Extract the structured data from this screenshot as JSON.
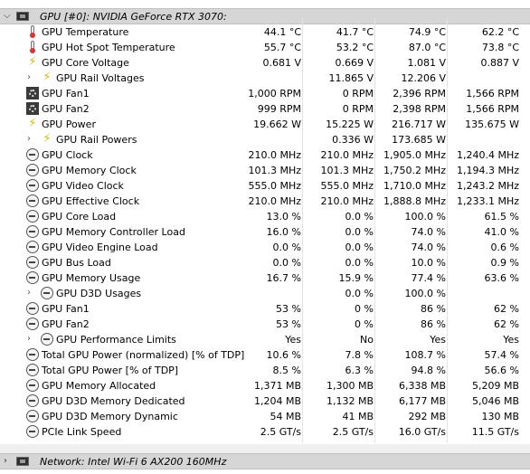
{
  "gpu_header": {
    "title": "GPU [#0]: NVIDIA GeForce RTX 3070:"
  },
  "rows": [
    {
      "label": "GPU Temperature",
      "icon": "thermometer-icon",
      "indent": 0,
      "expand": false,
      "v1": "44.1 °C",
      "v2": "41.7 °C",
      "v3": "74.9 °C",
      "v4": "62.2 °C"
    },
    {
      "label": "GPU Hot Spot Temperature",
      "icon": "thermometer-icon",
      "indent": 0,
      "expand": false,
      "v1": "55.7 °C",
      "v2": "53.2 °C",
      "v3": "87.0 °C",
      "v4": "73.8 °C"
    },
    {
      "label": "GPU Core Voltage",
      "icon": "bolt-icon",
      "indent": 0,
      "expand": false,
      "v1": "0.681 V",
      "v2": "0.669 V",
      "v3": "1.081 V",
      "v4": "0.887 V"
    },
    {
      "label": "GPU Rail Voltages",
      "icon": "bolt-icon",
      "indent": 1,
      "expand": true,
      "v1": "",
      "v2": "11.865 V",
      "v3": "12.206 V",
      "v4": ""
    },
    {
      "label": "GPU Fan1",
      "icon": "fan-icon",
      "indent": 0,
      "expand": false,
      "v1": "1,000 RPM",
      "v2": "0 RPM",
      "v3": "2,396 RPM",
      "v4": "1,566 RPM"
    },
    {
      "label": "GPU Fan2",
      "icon": "fan-icon",
      "indent": 0,
      "expand": false,
      "v1": "999 RPM",
      "v2": "0 RPM",
      "v3": "2,398 RPM",
      "v4": "1,566 RPM"
    },
    {
      "label": "GPU Power",
      "icon": "bolt-icon",
      "indent": 0,
      "expand": false,
      "v1": "19.662 W",
      "v2": "15.225 W",
      "v3": "216.717 W",
      "v4": "135.675 W"
    },
    {
      "label": "GPU Rail Powers",
      "icon": "bolt-icon",
      "indent": 1,
      "expand": true,
      "v1": "",
      "v2": "0.336 W",
      "v3": "173.685 W",
      "v4": ""
    },
    {
      "label": "GPU Clock",
      "icon": "clock-icon",
      "indent": 0,
      "expand": false,
      "v1": "210.0 MHz",
      "v2": "210.0 MHz",
      "v3": "1,905.0 MHz",
      "v4": "1,240.4 MHz"
    },
    {
      "label": "GPU Memory Clock",
      "icon": "clock-icon",
      "indent": 0,
      "expand": false,
      "v1": "101.3 MHz",
      "v2": "101.3 MHz",
      "v3": "1,750.2 MHz",
      "v4": "1,194.3 MHz"
    },
    {
      "label": "GPU Video Clock",
      "icon": "clock-icon",
      "indent": 0,
      "expand": false,
      "v1": "555.0 MHz",
      "v2": "555.0 MHz",
      "v3": "1,710.0 MHz",
      "v4": "1,243.2 MHz"
    },
    {
      "label": "GPU Effective Clock",
      "icon": "clock-icon",
      "indent": 0,
      "expand": false,
      "v1": "210.0 MHz",
      "v2": "210.0 MHz",
      "v3": "1,888.8 MHz",
      "v4": "1,233.1 MHz"
    },
    {
      "label": "GPU Core Load",
      "icon": "clock-icon",
      "indent": 0,
      "expand": false,
      "v1": "13.0 %",
      "v2": "0.0 %",
      "v3": "100.0 %",
      "v4": "61.5 %"
    },
    {
      "label": "GPU Memory Controller Load",
      "icon": "clock-icon",
      "indent": 0,
      "expand": false,
      "v1": "16.0 %",
      "v2": "0.0 %",
      "v3": "74.0 %",
      "v4": "41.0 %"
    },
    {
      "label": "GPU Video Engine Load",
      "icon": "clock-icon",
      "indent": 0,
      "expand": false,
      "v1": "0.0 %",
      "v2": "0.0 %",
      "v3": "74.0 %",
      "v4": "0.6 %"
    },
    {
      "label": "GPU Bus Load",
      "icon": "clock-icon",
      "indent": 0,
      "expand": false,
      "v1": "0.0 %",
      "v2": "0.0 %",
      "v3": "10.0 %",
      "v4": "0.9 %"
    },
    {
      "label": "GPU Memory Usage",
      "icon": "clock-icon",
      "indent": 0,
      "expand": false,
      "v1": "16.7 %",
      "v2": "15.9 %",
      "v3": "77.4 %",
      "v4": "63.6 %"
    },
    {
      "label": "GPU D3D Usages",
      "icon": "clock-icon",
      "indent": 1,
      "expand": true,
      "v1": "",
      "v2": "0.0 %",
      "v3": "100.0 %",
      "v4": ""
    },
    {
      "label": "GPU Fan1",
      "icon": "clock-icon",
      "indent": 0,
      "expand": false,
      "v1": "53 %",
      "v2": "0 %",
      "v3": "86 %",
      "v4": "62 %"
    },
    {
      "label": "GPU Fan2",
      "icon": "clock-icon",
      "indent": 0,
      "expand": false,
      "v1": "53 %",
      "v2": "0 %",
      "v3": "86 %",
      "v4": "62 %"
    },
    {
      "label": "GPU Performance Limits",
      "icon": "clock-icon",
      "indent": 1,
      "expand": true,
      "v1": "Yes",
      "v2": "No",
      "v3": "Yes",
      "v4": "Yes"
    },
    {
      "label": "Total GPU Power (normalized) [% of TDP]",
      "icon": "clock-icon",
      "indent": 0,
      "expand": false,
      "v1": "10.6 %",
      "v2": "7.8 %",
      "v3": "108.7 %",
      "v4": "57.4 %"
    },
    {
      "label": "Total GPU Power [% of TDP]",
      "icon": "clock-icon",
      "indent": 0,
      "expand": false,
      "v1": "8.5 %",
      "v2": "6.3 %",
      "v3": "94.8 %",
      "v4": "56.6 %"
    },
    {
      "label": "GPU Memory Allocated",
      "icon": "clock-icon",
      "indent": 0,
      "expand": false,
      "v1": "1,371 MB",
      "v2": "1,300 MB",
      "v3": "6,338 MB",
      "v4": "5,209 MB"
    },
    {
      "label": "GPU D3D Memory Dedicated",
      "icon": "clock-icon",
      "indent": 0,
      "expand": false,
      "v1": "1,204 MB",
      "v2": "1,132 MB",
      "v3": "6,177 MB",
      "v4": "5,046 MB"
    },
    {
      "label": "GPU D3D Memory Dynamic",
      "icon": "clock-icon",
      "indent": 0,
      "expand": false,
      "v1": "54 MB",
      "v2": "41 MB",
      "v3": "292 MB",
      "v4": "130 MB"
    },
    {
      "label": "PCIe Link Speed",
      "icon": "clock-icon",
      "indent": 0,
      "expand": false,
      "v1": "2.5 GT/s",
      "v2": "2.5 GT/s",
      "v3": "16.0 GT/s",
      "v4": "11.5 GT/s"
    }
  ],
  "network_header": {
    "title": "Network: Intel Wi-Fi 6 AX200 160MHz"
  }
}
